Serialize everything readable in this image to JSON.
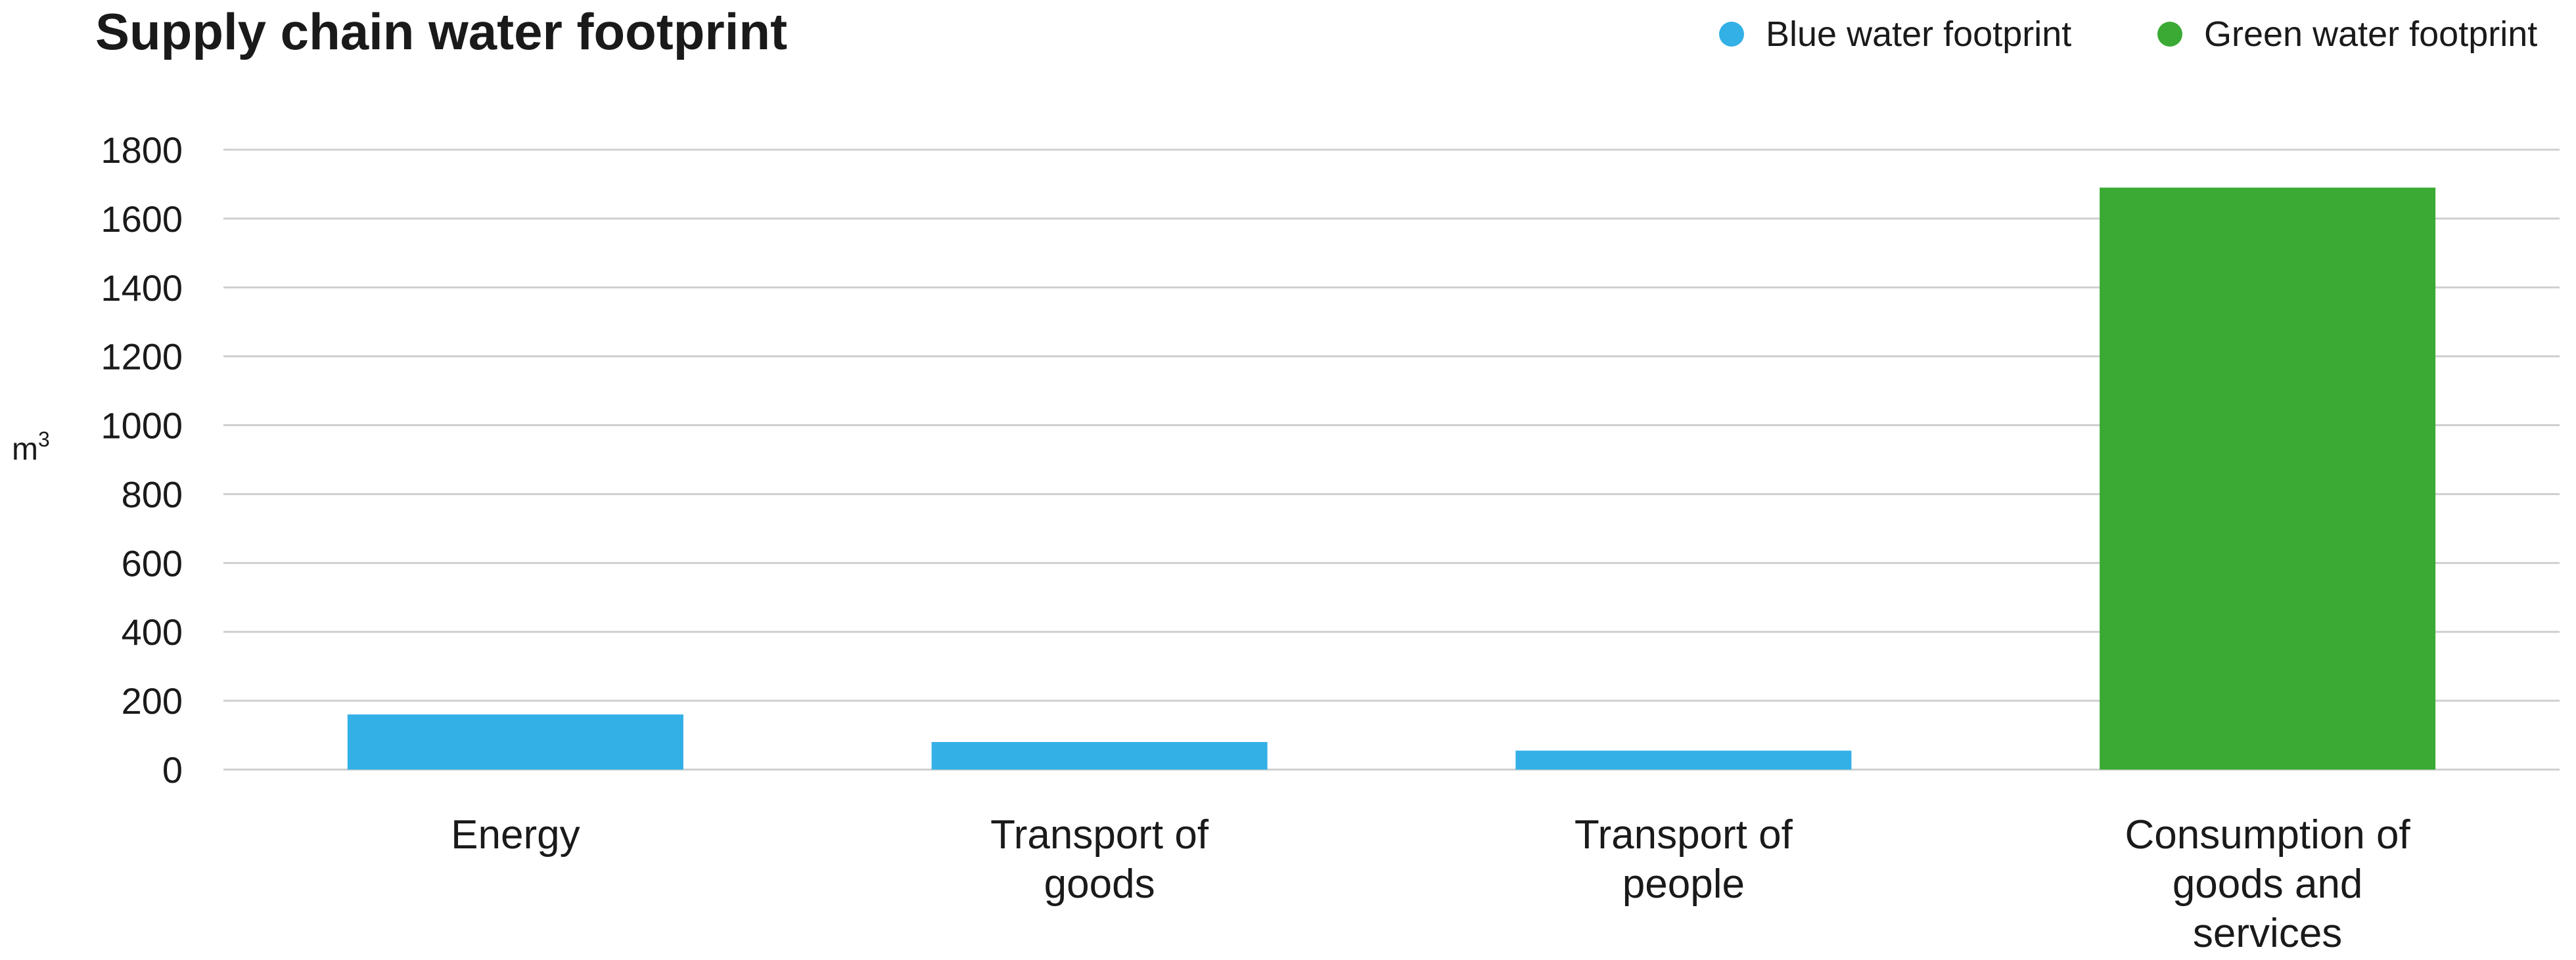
{
  "chart_data": {
    "type": "bar",
    "title": "Supply chain water footprint",
    "ylabel": "m",
    "ylabel_superscript": "3",
    "ylim": [
      0,
      1800
    ],
    "yticks": [
      0,
      200,
      400,
      600,
      800,
      1000,
      1200,
      1400,
      1600,
      1800
    ],
    "grid": true,
    "legend_position": "top-right",
    "legend": [
      {
        "name": "Blue water footprint",
        "color": "#33b0e6"
      },
      {
        "name": "Green water footprint",
        "color": "#3aaa35"
      }
    ],
    "categories": [
      {
        "lines": [
          "Energy"
        ],
        "value": 160,
        "series": "Blue water footprint",
        "color": "#33b0e6"
      },
      {
        "lines": [
          "Transport of",
          "goods"
        ],
        "value": 80,
        "series": "Blue water footprint",
        "color": "#33b0e6"
      },
      {
        "lines": [
          "Transport of",
          "people"
        ],
        "value": 55,
        "series": "Blue water footprint",
        "color": "#33b0e6"
      },
      {
        "lines": [
          "Consumption of",
          "goods and",
          "services"
        ],
        "value": 1690,
        "series": "Green water footprint",
        "color": "#3aaa35"
      }
    ]
  }
}
